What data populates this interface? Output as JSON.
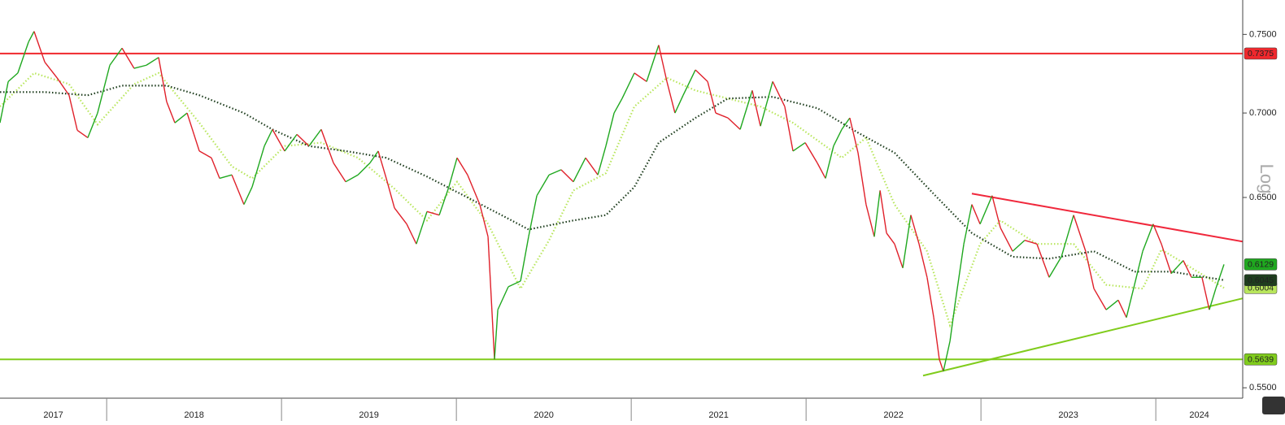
{
  "chart_data": {
    "type": "line",
    "y_scale": "log",
    "y_label": "Log",
    "xlim": [
      2017.39,
      2024.497
    ],
    "ylim": [
      0.545,
      0.773
    ],
    "xticks": [
      {
        "value": 2017.5,
        "label": "2017"
      },
      {
        "value": 2018.5,
        "label": "2018"
      },
      {
        "value": 2019.5,
        "label": "2019"
      },
      {
        "value": 2020.5,
        "label": "2020"
      },
      {
        "value": 2021.5,
        "label": "2021"
      },
      {
        "value": 2022.5,
        "label": "2022"
      },
      {
        "value": 2023.5,
        "label": "2023"
      },
      {
        "value": 2024.5,
        "label": "2024"
      }
    ],
    "yticks": [
      {
        "value": 0.75,
        "label": "0.7500"
      },
      {
        "value": 0.7,
        "label": "0.7000"
      },
      {
        "value": 0.65,
        "label": "0.6500"
      },
      {
        "value": 0.55,
        "label": "0.5500"
      }
    ],
    "series": [
      {
        "color": "#1fa81f",
        "down_color": "#e0202a",
        "x": [
          2017.39,
          2017.437,
          2017.492,
          2017.553,
          2017.585,
          2017.646,
          2017.716,
          2017.785,
          2017.832,
          2017.892,
          2017.948,
          2018.018,
          2018.088,
          2018.157,
          2018.227,
          2018.297,
          2018.343,
          2018.39,
          2018.46,
          2018.53,
          2018.599,
          2018.646,
          2018.716,
          2018.785,
          2018.832,
          2018.902,
          2018.948,
          2019.018,
          2019.088,
          2019.157,
          2019.227,
          2019.297,
          2019.367,
          2019.437,
          2019.506,
          2019.553,
          2019.599,
          2019.646,
          2019.716,
          2019.771,
          2019.832,
          2019.902,
          2019.957,
          2020.004,
          2020.064,
          2020.134,
          2020.181,
          2020.218,
          2020.237,
          2020.297,
          2020.367,
          2020.413,
          2020.46,
          2020.53,
          2020.599,
          2020.669,
          2020.739,
          2020.809,
          2020.855,
          2020.902,
          2020.948,
          2021.018,
          2021.088,
          2021.157,
          2021.204,
          2021.25,
          2021.297,
          2021.367,
          2021.437,
          2021.483,
          2021.553,
          2021.623,
          2021.692,
          2021.739,
          2021.809,
          2021.878,
          2021.925,
          2021.995,
          2022.064,
          2022.111,
          2022.157,
          2022.204,
          2022.25,
          2022.297,
          2022.343,
          2022.39,
          2022.423,
          2022.46,
          2022.506,
          2022.553,
          2022.599,
          2022.646,
          2022.692,
          2022.73,
          2022.762,
          2022.785,
          2022.823,
          2022.855,
          2022.902,
          2022.948,
          2022.995,
          2023.064,
          2023.111,
          2023.181,
          2023.25,
          2023.32,
          2023.39,
          2023.46,
          2023.53,
          2023.599,
          2023.646,
          2023.716,
          2023.785,
          2023.832,
          2023.878,
          2023.925,
          2023.985,
          2024.032,
          2024.088,
          2024.157,
          2024.204,
          2024.264,
          2024.306,
          2024.343,
          2024.39
        ],
        "values": [
          0.694,
          0.7196,
          0.725,
          0.745,
          0.752,
          0.732,
          0.722,
          0.711,
          0.6895,
          0.685,
          0.7,
          0.73,
          0.741,
          0.728,
          0.73,
          0.735,
          0.707,
          0.694,
          0.7,
          0.677,
          0.673,
          0.661,
          0.663,
          0.646,
          0.656,
          0.68,
          0.69,
          0.677,
          0.687,
          0.68,
          0.69,
          0.67,
          0.659,
          0.663,
          0.67,
          0.677,
          0.661,
          0.644,
          0.635,
          0.624,
          0.642,
          0.64,
          0.656,
          0.673,
          0.663,
          0.646,
          0.628,
          0.5639,
          0.589,
          0.601,
          0.604,
          0.628,
          0.651,
          0.663,
          0.666,
          0.659,
          0.673,
          0.663,
          0.68,
          0.7,
          0.709,
          0.725,
          0.7196,
          0.743,
          0.7196,
          0.7,
          0.711,
          0.727,
          0.7196,
          0.7,
          0.697,
          0.69,
          0.714,
          0.692,
          0.7196,
          0.704,
          0.677,
          0.682,
          0.67,
          0.661,
          0.68,
          0.69,
          0.697,
          0.676,
          0.646,
          0.628,
          0.654,
          0.63,
          0.624,
          0.611,
          0.64,
          0.624,
          0.606,
          0.585,
          0.5639,
          0.558,
          0.573,
          0.594,
          0.624,
          0.646,
          0.635,
          0.651,
          0.633,
          0.62,
          0.626,
          0.624,
          0.606,
          0.617,
          0.64,
          0.62,
          0.6,
          0.589,
          0.594,
          0.585,
          0.602,
          0.62,
          0.635,
          0.624,
          0.608,
          0.615,
          0.606,
          0.606,
          0.589,
          0.6,
          0.6129
        ]
      },
      {
        "color": "#1e3d1e",
        "dash": "dotted",
        "x": [
          2017.39,
          2017.646,
          2017.892,
          2018.088,
          2018.343,
          2018.53,
          2018.785,
          2018.948,
          2019.157,
          2019.367,
          2019.599,
          2019.832,
          2020.064,
          2020.297,
          2020.413,
          2020.669,
          2020.855,
          2021.018,
          2021.157,
          2021.367,
          2021.553,
          2021.809,
          2022.064,
          2022.297,
          2022.506,
          2022.73,
          2022.948,
          2023.181,
          2023.39,
          2023.646,
          2023.878,
          2024.088,
          2024.39
        ],
        "values": [
          0.713,
          0.713,
          0.711,
          0.717,
          0.717,
          0.711,
          0.7,
          0.69,
          0.68,
          0.677,
          0.673,
          0.662,
          0.65,
          0.638,
          0.632,
          0.637,
          0.64,
          0.656,
          0.682,
          0.697,
          0.709,
          0.71,
          0.703,
          0.688,
          0.676,
          0.652,
          0.63,
          0.617,
          0.616,
          0.62,
          0.609,
          0.609,
          0.6045
        ]
      },
      {
        "color": "#b8e65c",
        "dash": "dotted",
        "x": [
          2017.39,
          2017.585,
          2017.785,
          2017.948,
          2018.157,
          2018.297,
          2018.53,
          2018.716,
          2018.832,
          2019.018,
          2019.227,
          2019.437,
          2019.646,
          2019.832,
          2020.004,
          2020.181,
          2020.367,
          2020.53,
          2020.669,
          2020.855,
          2021.018,
          2021.204,
          2021.367,
          2021.553,
          2021.739,
          2021.925,
          2022.204,
          2022.343,
          2022.506,
          2022.692,
          2022.823,
          2022.995,
          2023.111,
          2023.32,
          2023.53,
          2023.716,
          2023.925,
          2024.032,
          2024.204,
          2024.39
        ],
        "values": [
          0.704,
          0.725,
          0.718,
          0.693,
          0.718,
          0.725,
          0.694,
          0.668,
          0.661,
          0.68,
          0.682,
          0.673,
          0.655,
          0.637,
          0.659,
          0.635,
          0.6,
          0.626,
          0.654,
          0.664,
          0.704,
          0.722,
          0.714,
          0.709,
          0.704,
          0.694,
          0.673,
          0.685,
          0.646,
          0.62,
          0.581,
          0.624,
          0.637,
          0.624,
          0.624,
          0.602,
          0.6,
          0.621,
          0.611,
          0.6004
        ]
      }
    ],
    "hlines": [
      {
        "value": 0.7375,
        "color": "#f0282d"
      },
      {
        "value": 0.5639,
        "color": "#80cc1c"
      }
    ],
    "trendlines": [
      {
        "color": "#f0283c",
        "x": [
          2022.948,
          2024.497
        ],
        "values": [
          0.6522,
          0.6253
        ]
      },
      {
        "color": "#80cc1c",
        "x": [
          2022.669,
          2024.497
        ],
        "values": [
          0.5559,
          0.5949
        ]
      }
    ]
  }
}
